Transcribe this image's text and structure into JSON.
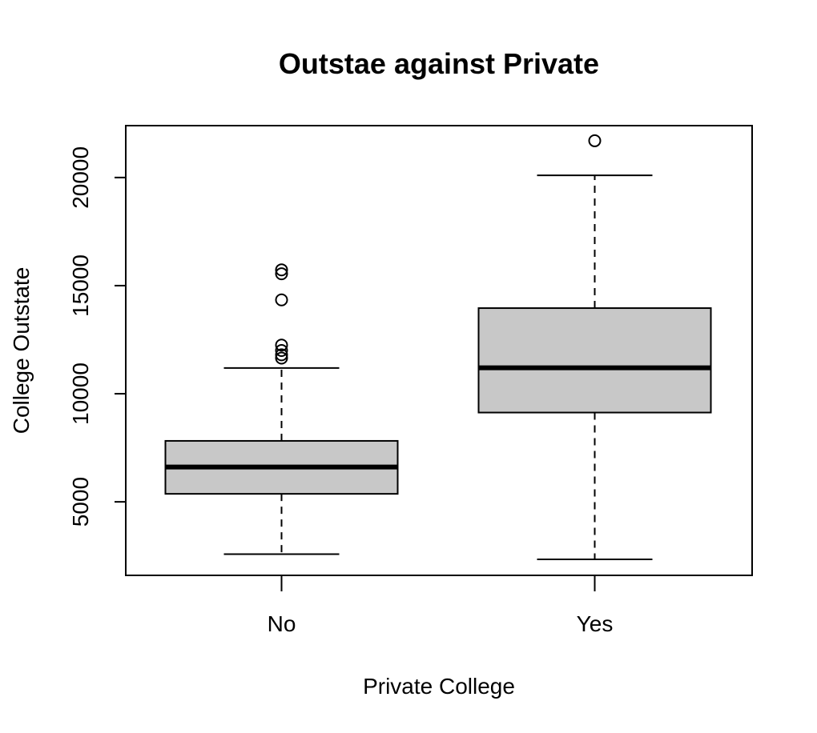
{
  "chart_data": {
    "type": "box",
    "title": "Outstae against Private",
    "xlabel": "Private College",
    "ylabel": "College Outstate",
    "categories": [
      "No",
      "Yes"
    ],
    "y_ticks": [
      5000,
      10000,
      15000,
      20000
    ],
    "ylim": [
      1600,
      22400
    ],
    "boxes": [
      {
        "category": "No",
        "whisker_low": 2580,
        "q1": 5370,
        "median": 6610,
        "q3": 7820,
        "whisker_high": 11190,
        "outliers": [
          11650,
          11800,
          12000,
          12250,
          14340,
          15550,
          15730
        ]
      },
      {
        "category": "Yes",
        "whisker_low": 2340,
        "q1": 9130,
        "median": 11200,
        "q3": 13960,
        "whisker_high": 20100,
        "outliers": [
          21700
        ]
      }
    ],
    "box_fill": "#c8c8c8",
    "grid": false,
    "legend": "none"
  }
}
